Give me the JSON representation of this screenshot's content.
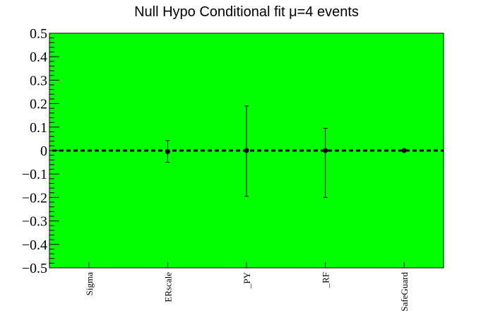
{
  "chart_data": {
    "type": "scatter",
    "title": "Null Hypo Conditional fit μ=4 events",
    "xlabel": "",
    "ylabel": "",
    "categories": [
      "Sigma",
      "ERscale",
      "_PY",
      "_RF",
      "SafeGuard"
    ],
    "series": [
      {
        "values": [
          null,
          -0.005,
          0.0,
          0.0,
          0.0
        ],
        "err_low": [
          null,
          0.045,
          0.195,
          0.2,
          0.0
        ],
        "err_high": [
          null,
          0.048,
          0.19,
          0.095,
          0.0
        ]
      }
    ],
    "ylim": [
      -0.5,
      0.5
    ],
    "yticks": [
      0.5,
      0.4,
      0.3,
      0.2,
      0.1,
      0,
      -0.1,
      -0.2,
      -0.3,
      -0.4,
      -0.5
    ],
    "ytick_labels": [
      "0.5",
      "0.4",
      "0.3",
      "0.2",
      "0.1",
      "0",
      "−0.1",
      "−0.2",
      "−0.3",
      "−0.4",
      "−0.5"
    ],
    "reference_line": 0,
    "plot_background": "#00ff00",
    "marker_color": "#000000",
    "grid": false
  }
}
